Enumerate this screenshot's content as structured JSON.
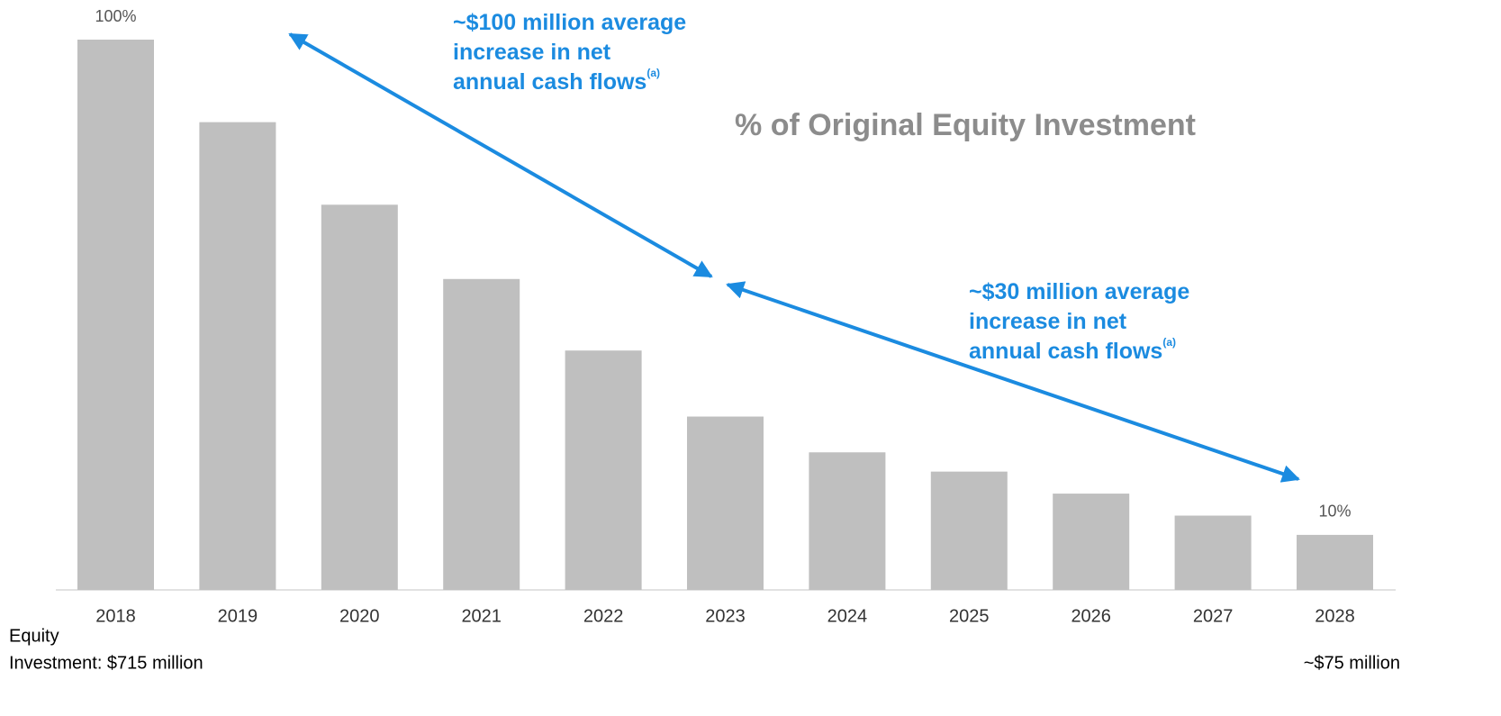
{
  "chart_data": {
    "type": "bar",
    "title": "% of Original Equity Investment",
    "categories": [
      "2018",
      "2019",
      "2020",
      "2021",
      "2022",
      "2023",
      "2024",
      "2025",
      "2026",
      "2027",
      "2028"
    ],
    "values": [
      100,
      85,
      70,
      56.5,
      43.5,
      31.5,
      25,
      21.5,
      17.5,
      13.5,
      10
    ],
    "value_labels": [
      "100%",
      null,
      null,
      null,
      null,
      null,
      null,
      null,
      null,
      null,
      "10%"
    ],
    "color": "#bfbfbf",
    "ylim": [
      0,
      100
    ],
    "annotations": [
      {
        "lines": [
          "~$100 million average",
          "increase in net",
          "annual cash flows"
        ],
        "note": "(a)"
      },
      {
        "lines": [
          "~$30 million average",
          "increase in net",
          "annual cash flows"
        ],
        "note": "(a)"
      }
    ],
    "footnotes": {
      "left": [
        "Equity",
        "Investment: $715 million"
      ],
      "right": "~$75 million"
    }
  }
}
